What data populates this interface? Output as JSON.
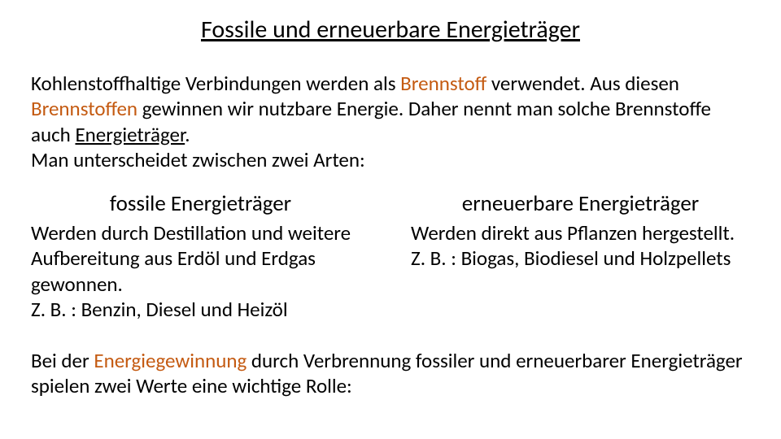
{
  "title": "Fossile und erneuerbare Energieträger",
  "intro": {
    "part1": "Kohlenstoffhaltige Verbindungen werden als ",
    "hl1": "Brennstoff",
    "part2": " verwendet. Aus diesen ",
    "hl2": "Brennstoffen",
    "part3": " gewinnen wir nutzbare Energie. Daher nennt man solche Brennstoffe auch ",
    "underlined": "Energieträger",
    "part4": ".",
    "line2": "Man unterscheidet zwischen zwei Arten:"
  },
  "columns": {
    "left": {
      "heading": "fossile Energieträger",
      "body": "Werden durch Destillation und weitere Aufbereitung aus Erdöl und Erdgas gewonnen.",
      "example": "Z. B. : Benzin, Diesel und Heizöl"
    },
    "right": {
      "heading": "erneuerbare Energieträger",
      "body": "Werden direkt aus Pflanzen hergestellt.",
      "example": "Z. B. : Biogas, Biodiesel und Holzpellets"
    }
  },
  "closing": {
    "part1": "Bei der ",
    "hl1": "Energiegewinnung",
    "part2": " durch Verbrennung fossiler und erneuerbarer Energieträger spielen zwei Werte eine wichtige Rolle:"
  },
  "colors": {
    "highlight": "#c45a11",
    "text": "#000000",
    "background": "#ffffff"
  },
  "fonts": {
    "title_size": 30,
    "body_size": 25,
    "heading_size": 27
  }
}
